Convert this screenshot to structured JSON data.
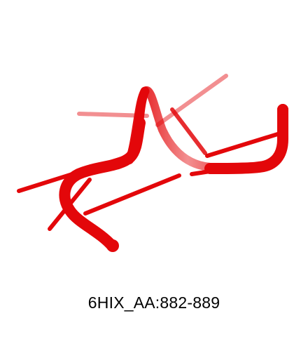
{
  "caption": "6HIX_AA:882-889",
  "colors": {
    "background": "#ffffff",
    "cartoon": "#e3070a",
    "cartoon_dark": "#a00000",
    "text": "#000000"
  }
}
